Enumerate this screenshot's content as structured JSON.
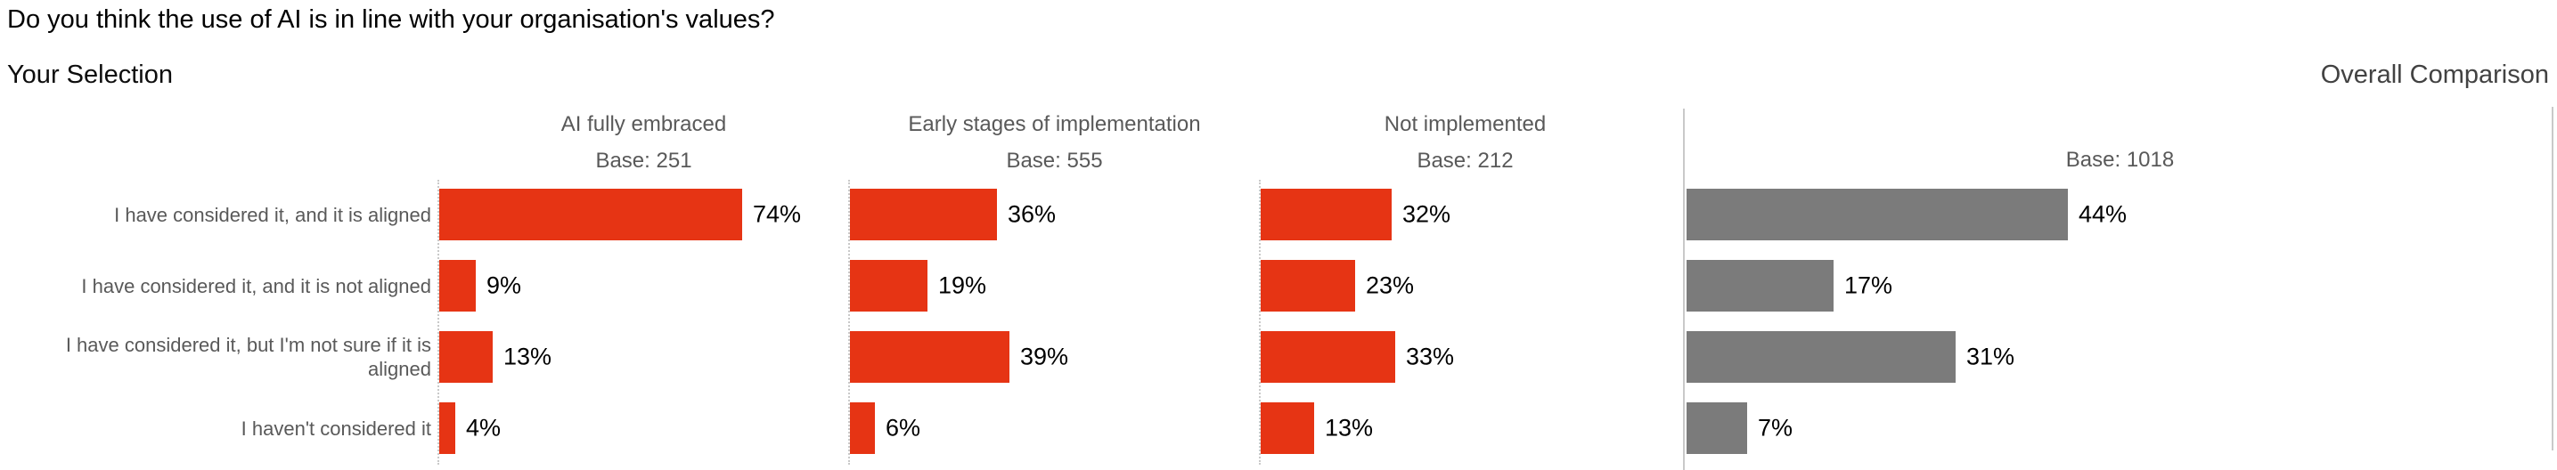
{
  "title": "Do you think the use of AI is in line with your organisation's values?",
  "sections": {
    "left": "Your Selection",
    "right": "Overall Comparison"
  },
  "rows": [
    "I have considered it, and it is aligned",
    "I have considered it, and it is not aligned",
    "I have considered it, but I'm not sure if it is aligned",
    "I haven't considered it"
  ],
  "columns": [
    {
      "label": "AI fully embraced",
      "base": "Base: 251",
      "values": [
        "74%",
        "9%",
        "13%",
        "4%"
      ]
    },
    {
      "label": "Early stages of implementation",
      "base": "Base: 555",
      "values": [
        "36%",
        "19%",
        "39%",
        "6%"
      ]
    },
    {
      "label": "Not implemented",
      "base": "Base: 212",
      "values": [
        "32%",
        "23%",
        "33%",
        "13%"
      ]
    }
  ],
  "overall": {
    "base": "Base: 1018",
    "values": [
      "44%",
      "17%",
      "31%",
      "7%"
    ]
  },
  "colors": {
    "selection_bar": "#E63414",
    "overall_bar": "#7B7B7B",
    "axis_line": "#C9C9C9",
    "label_text": "#595959",
    "value_text": "#000000"
  },
  "chart_data": {
    "type": "bar",
    "orientation": "horizontal",
    "title": "Do you think the use of AI is in line with your organisation's values?",
    "unit": "%",
    "xlim": [
      0,
      100
    ],
    "grid": false,
    "legend": "none",
    "categories": [
      "I have considered it, and it is aligned",
      "I have considered it, and it is not aligned",
      "I have considered it, but I'm not sure if it is aligned",
      "I haven't considered it"
    ],
    "series": [
      {
        "name": "AI fully embraced",
        "base": 251,
        "values": [
          74,
          9,
          13,
          4
        ]
      },
      {
        "name": "Early stages of implementation",
        "base": 555,
        "values": [
          36,
          19,
          39,
          6
        ]
      },
      {
        "name": "Not implemented",
        "base": 212,
        "values": [
          32,
          23,
          33,
          13
        ]
      },
      {
        "name": "Overall Comparison",
        "base": 1018,
        "values": [
          44,
          17,
          31,
          7
        ]
      }
    ]
  }
}
